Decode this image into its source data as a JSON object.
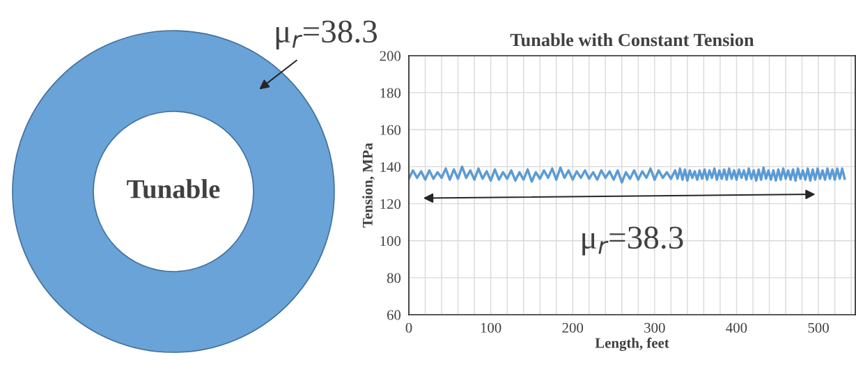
{
  "chart_data": {
    "type": "line",
    "title": "Tunable with Constant Tension",
    "xlabel": "Length, feet",
    "ylabel": "Tension, MPa",
    "annotations": [
      "Tunable",
      "μ$_{r}$=38.3",
      "μ$_{r}$=38.3"
    ],
    "xlim": [
      0,
      545
    ],
    "ylim": [
      60,
      200
    ],
    "xticks": [
      0,
      {
        "value": 20,
        "label": null
      },
      {
        "value": 40,
        "label": null
      },
      {
        "value": 60,
        "label": null
      },
      {
        "value": 80,
        "label": null
      },
      100,
      {
        "value": 120,
        "label": null
      },
      {
        "value": 140,
        "label": null
      },
      {
        "value": 160,
        "label": null
      },
      {
        "value": 180,
        "label": null
      },
      200,
      {
        "value": 220,
        "label": null
      },
      {
        "value": 240,
        "label": null
      },
      {
        "value": 260,
        "label": null
      },
      {
        "value": 280,
        "label": null
      },
      300,
      {
        "value": 320,
        "label": null
      },
      {
        "value": 340,
        "label": null
      },
      {
        "value": 360,
        "label": null
      },
      {
        "value": 380,
        "label": null
      },
      400,
      {
        "value": 420,
        "label": null
      },
      {
        "value": 440,
        "label": null
      },
      {
        "value": 460,
        "label": null
      },
      {
        "value": 480,
        "label": null
      },
      500,
      {
        "value": 520,
        "label": null
      },
      {
        "value": 540,
        "label": null
      }
    ],
    "yticks": [
      60,
      80,
      100,
      120,
      140,
      160,
      180,
      200
    ],
    "grid": true,
    "marker": "none",
    "line_style": "solid",
    "x": [
      0,
      5,
      10,
      15,
      20,
      25,
      30,
      35,
      40,
      45,
      50,
      55,
      60,
      65,
      70,
      75,
      80,
      85,
      90,
      95,
      100,
      105,
      110,
      115,
      120,
      125,
      130,
      135,
      140,
      145,
      150,
      155,
      160,
      165,
      170,
      175,
      180,
      185,
      190,
      195,
      200,
      205,
      210,
      215,
      220,
      225,
      230,
      235,
      240,
      245,
      250,
      255,
      260,
      265,
      270,
      275,
      280,
      285,
      290,
      295,
      300,
      305,
      310,
      315,
      320,
      325,
      328,
      331,
      334,
      337,
      340,
      343,
      346,
      349,
      352,
      355,
      358,
      361,
      364,
      367,
      370,
      373,
      376,
      379,
      382,
      385,
      388,
      391,
      394,
      397,
      400,
      403,
      406,
      409,
      412,
      415,
      418,
      421,
      424,
      427,
      430,
      433,
      436,
      439,
      442,
      445,
      448,
      451,
      454,
      457,
      460,
      463,
      466,
      469,
      472,
      475,
      478,
      481,
      484,
      487,
      490,
      493,
      496,
      499,
      502,
      505,
      508,
      511,
      514,
      517,
      520,
      523,
      526,
      529,
      532
    ],
    "series": [
      {
        "color": "#5b9bd5",
        "values": [
          133.5,
          138,
          134,
          137.5,
          133,
          138,
          133.5,
          137,
          134,
          139,
          133,
          138.5,
          133.5,
          140,
          134,
          138,
          133,
          139,
          133.5,
          137.5,
          132.5,
          138.5,
          133,
          137,
          133.5,
          138,
          132.5,
          137,
          133,
          138.5,
          132,
          137,
          133.5,
          138,
          134,
          139,
          133,
          139.5,
          134,
          138,
          133,
          137.5,
          134,
          138,
          133.5,
          137,
          133,
          138,
          134,
          137.5,
          133,
          138,
          131.5,
          137,
          133.5,
          138,
          133,
          137.5,
          134,
          139,
          133,
          138,
          134,
          137,
          133.5,
          138,
          133.5,
          139,
          133,
          138.5,
          132.5,
          138,
          134,
          137.5,
          133,
          138,
          133.5,
          138.5,
          133,
          138,
          134,
          139,
          133,
          138,
          133.5,
          138.5,
          133,
          139,
          133.5,
          138,
          133,
          138.5,
          134,
          138,
          133,
          139,
          133.5,
          138,
          132.5,
          138.5,
          133,
          139.5,
          133.5,
          138,
          133,
          138,
          132.5,
          138.5,
          133,
          139,
          133.5,
          138,
          133,
          138.5,
          132.5,
          139,
          133.5,
          138,
          133,
          139,
          132.5,
          138.5,
          133,
          139,
          133.5,
          138,
          133,
          139,
          133.5,
          138.5,
          133,
          139,
          133.5,
          139,
          133.5
        ]
      }
    ]
  }
}
